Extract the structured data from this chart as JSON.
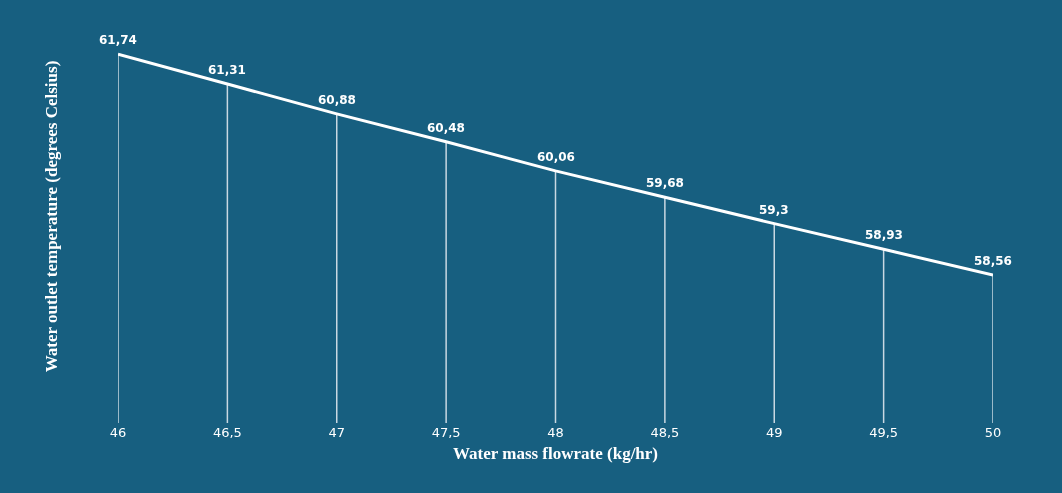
{
  "chart_data": {
    "type": "line",
    "xlabel": "Water mass flowrate (kg/hr)",
    "ylabel": "Water outlet temperature (degrees Celsius)",
    "x": [
      46,
      46.5,
      47,
      47.5,
      48,
      48.5,
      49,
      49.5,
      50
    ],
    "series": [
      {
        "color": "#ffffff",
        "values": [
          61.74,
          61.31,
          60.88,
          60.48,
          60.06,
          59.68,
          59.3,
          58.93,
          58.56
        ],
        "value_labels": [
          "61,74",
          "61,31",
          "60,88",
          "60,48",
          "60,06",
          "59,68",
          "59,3",
          "58,93",
          "58,56"
        ]
      }
    ],
    "xlim": [
      46,
      50
    ],
    "xticks": [
      46,
      {
        "value": 46.5,
        "label": "46,5"
      },
      47,
      {
        "value": 47.5,
        "label": "47,5"
      },
      48,
      {
        "value": 48.5,
        "label": "48,5"
      },
      49,
      {
        "value": 49.5,
        "label": "49,5"
      },
      50
    ],
    "tick_labels": "x",
    "grid": "x",
    "marker": "none",
    "line_style": "solid"
  }
}
